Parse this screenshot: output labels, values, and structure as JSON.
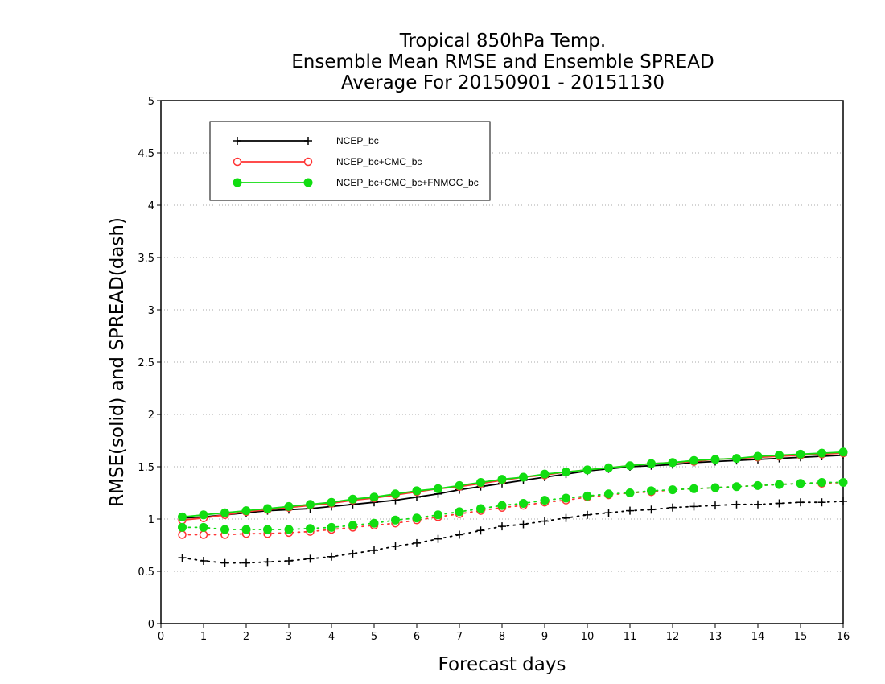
{
  "chart_data": {
    "type": "line",
    "title_lines": [
      "Tropical 850hPa Temp.",
      "Ensemble Mean RMSE and Ensemble SPREAD",
      "Average For 20150901 - 20151130"
    ],
    "xlabel": "Forecast days",
    "ylabel": "RMSE(solid) and SPREAD(dash)",
    "xlim": [
      0,
      16
    ],
    "ylim": [
      0,
      5
    ],
    "x_ticks": [
      "0",
      "1",
      "2",
      "3",
      "4",
      "5",
      "6",
      "7",
      "8",
      "9",
      "10",
      "11",
      "12",
      "13",
      "14",
      "15",
      "16"
    ],
    "y_ticks": [
      "0",
      "0.5",
      "1",
      "1.5",
      "2",
      "2.5",
      "3",
      "3.5",
      "4",
      "4.5",
      "5"
    ],
    "grid": "horizontal-dotted",
    "legend_position": "top-left",
    "x": [
      0.5,
      1,
      1.5,
      2,
      2.5,
      3,
      3.5,
      4,
      4.5,
      5,
      5.5,
      6,
      6.5,
      7,
      7.5,
      8,
      8.5,
      9,
      9.5,
      10,
      10.5,
      11,
      11.5,
      12,
      12.5,
      13,
      13.5,
      14,
      14.5,
      15,
      15.5,
      16
    ],
    "series": [
      {
        "name": "NCEP_bc",
        "color": "#000000",
        "marker": "plus",
        "rmse": [
          1.01,
          1.02,
          1.04,
          1.06,
          1.08,
          1.09,
          1.1,
          1.12,
          1.14,
          1.16,
          1.18,
          1.21,
          1.24,
          1.28,
          1.31,
          1.34,
          1.37,
          1.4,
          1.43,
          1.46,
          1.48,
          1.5,
          1.51,
          1.52,
          1.54,
          1.55,
          1.56,
          1.57,
          1.58,
          1.59,
          1.6,
          1.61
        ],
        "spread": [
          0.63,
          0.6,
          0.58,
          0.58,
          0.59,
          0.6,
          0.62,
          0.64,
          0.67,
          0.7,
          0.74,
          0.77,
          0.81,
          0.85,
          0.89,
          0.93,
          0.95,
          0.98,
          1.01,
          1.04,
          1.06,
          1.08,
          1.09,
          1.11,
          1.12,
          1.13,
          1.14,
          1.14,
          1.15,
          1.16,
          1.16,
          1.17
        ]
      },
      {
        "name": "NCEP_bc+CMC_bc",
        "color": "#ff3333",
        "marker": "circle-open",
        "rmse": [
          0.99,
          1.01,
          1.04,
          1.07,
          1.09,
          1.11,
          1.13,
          1.15,
          1.18,
          1.2,
          1.23,
          1.26,
          1.29,
          1.31,
          1.34,
          1.37,
          1.4,
          1.42,
          1.45,
          1.47,
          1.49,
          1.51,
          1.53,
          1.54,
          1.55,
          1.57,
          1.58,
          1.59,
          1.6,
          1.61,
          1.62,
          1.63
        ],
        "spread": [
          0.85,
          0.85,
          0.85,
          0.86,
          0.86,
          0.87,
          0.88,
          0.9,
          0.92,
          0.94,
          0.96,
          0.99,
          1.02,
          1.05,
          1.08,
          1.11,
          1.13,
          1.16,
          1.18,
          1.21,
          1.23,
          1.25,
          1.26,
          1.28,
          1.29,
          1.3,
          1.31,
          1.32,
          1.33,
          1.34,
          1.34,
          1.35
        ]
      },
      {
        "name": "NCEP_bc+CMC_bc+FNMOC_bc",
        "color": "#11dd11",
        "marker": "circle-filled",
        "rmse": [
          1.02,
          1.04,
          1.06,
          1.08,
          1.1,
          1.12,
          1.14,
          1.16,
          1.19,
          1.21,
          1.24,
          1.27,
          1.29,
          1.32,
          1.35,
          1.38,
          1.4,
          1.43,
          1.45,
          1.47,
          1.49,
          1.51,
          1.53,
          1.54,
          1.56,
          1.57,
          1.58,
          1.6,
          1.61,
          1.62,
          1.63,
          1.64
        ],
        "spread": [
          0.92,
          0.92,
          0.9,
          0.9,
          0.9,
          0.9,
          0.91,
          0.92,
          0.94,
          0.96,
          0.99,
          1.01,
          1.04,
          1.07,
          1.1,
          1.13,
          1.15,
          1.18,
          1.2,
          1.22,
          1.24,
          1.25,
          1.27,
          1.28,
          1.29,
          1.3,
          1.31,
          1.32,
          1.33,
          1.34,
          1.35,
          1.35
        ]
      }
    ]
  }
}
